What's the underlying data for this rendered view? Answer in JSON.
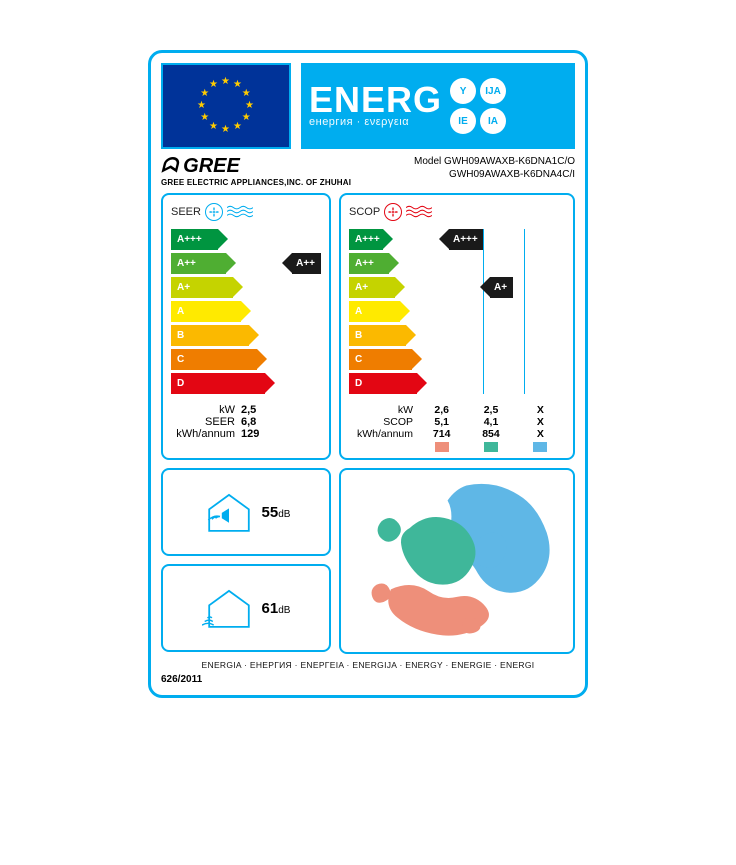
{
  "header": {
    "title": "ENERG",
    "subtitle": "енергия · ενεργεια",
    "lang_badges": [
      "Y",
      "IJA",
      "IE",
      "IA"
    ]
  },
  "brand": {
    "name": "GREE",
    "company": "GREE ELECTRIC APPLIANCES,INC. OF ZHUHAI",
    "model_label": "Model",
    "model1": "GWH09AWAXB-K6DNA1C/O",
    "model2": "GWH09AWAXB-K6DNA4C/I"
  },
  "rating_scale": {
    "levels": [
      "A+++",
      "A++",
      "A+",
      "A",
      "B",
      "C",
      "D"
    ],
    "colors": [
      "#009540",
      "#4fae32",
      "#c5d300",
      "#ffea00",
      "#fbb900",
      "#ef7d00",
      "#e30613"
    ],
    "widths_pct": [
      36,
      42,
      48,
      54,
      60,
      66,
      72
    ]
  },
  "seer": {
    "title": "SEER",
    "icon_color": "#00adef",
    "rating": "A++",
    "rating_index": 1,
    "specs": [
      {
        "label": "kW",
        "value": "2,5"
      },
      {
        "label": "SEER",
        "value": "6,8"
      },
      {
        "label": "kWh/annum",
        "value": "129"
      }
    ]
  },
  "scop": {
    "title": "SCOP",
    "icon_color": "#e30613",
    "zones": [
      {
        "rating": "A+++",
        "rating_index": 0,
        "color": "#ee8f7a"
      },
      {
        "rating": "A+",
        "rating_index": 2,
        "color": "#3fb79a"
      },
      {
        "rating": "",
        "rating_index": -1,
        "color": "#5fb7e6"
      }
    ],
    "spec_rows": [
      {
        "label": "kW",
        "vals": [
          "2,6",
          "2,5",
          "X"
        ]
      },
      {
        "label": "SCOP",
        "vals": [
          "5,1",
          "4,1",
          "X"
        ]
      },
      {
        "label": "kWh/annum",
        "vals": [
          "714",
          "854",
          "X"
        ]
      }
    ]
  },
  "sound": {
    "indoor_db": "55",
    "outdoor_db": "61",
    "unit": "dB"
  },
  "map_colors": {
    "warm": "#ee8f7a",
    "temperate": "#3fb79a",
    "cold": "#5fb7e6"
  },
  "footer": {
    "langs": "ENERGIA · ЕНЕРГИЯ · ΕΝΕΡΓΕΙΑ · ENERGIJA · ENERGY · ENERGIE · ENERGI",
    "regulation": "626/2011"
  }
}
